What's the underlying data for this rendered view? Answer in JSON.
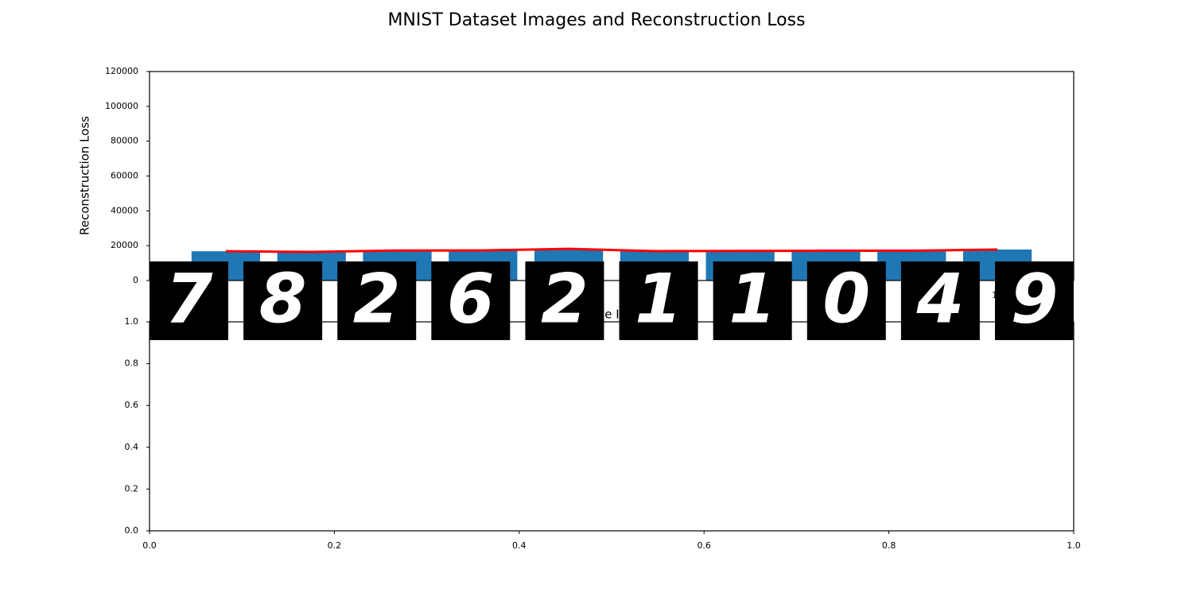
{
  "chart_data": [
    {
      "type": "bar",
      "title": "MNIST Dataset Images and Reconstruction Loss",
      "xlabel": "Image Index",
      "ylabel": "Reconstruction Loss",
      "x": [
        1,
        2,
        3,
        4,
        5,
        6,
        7,
        8,
        9,
        10
      ],
      "series": [
        {
          "kind": "bar",
          "color": "#1f77b4",
          "values": [
            16800,
            16400,
            17200,
            17300,
            18200,
            16900,
            17000,
            17100,
            17100,
            17800
          ]
        },
        {
          "kind": "line",
          "color": "#ff0000",
          "values": [
            16800,
            16400,
            17200,
            17300,
            18200,
            16900,
            17000,
            17100,
            17100,
            17800
          ]
        }
      ],
      "xlim": [
        0.11,
        10.89
      ],
      "xticks": [
        1,
        2,
        3,
        4,
        5,
        6,
        7,
        8,
        9,
        10
      ],
      "ylim": [
        0,
        120000
      ],
      "yticks": [
        0,
        20000,
        40000,
        60000,
        80000,
        100000,
        120000
      ],
      "images": [
        "7",
        "8",
        "2",
        "6",
        "2",
        "1",
        "1",
        "0",
        "4",
        "9"
      ]
    },
    {
      "type": "line",
      "xlim": [
        0,
        1
      ],
      "xticks": [
        {
          "value": 0,
          "label": "0.0"
        },
        0.2,
        0.4,
        0.6,
        0.8,
        {
          "value": 1,
          "label": "1.0"
        }
      ],
      "ylim": [
        0,
        1
      ],
      "yticks": [
        {
          "value": 0,
          "label": "0.0"
        },
        0.2,
        0.4,
        0.6,
        0.8,
        {
          "value": 1,
          "label": "1.0"
        }
      ]
    }
  ]
}
